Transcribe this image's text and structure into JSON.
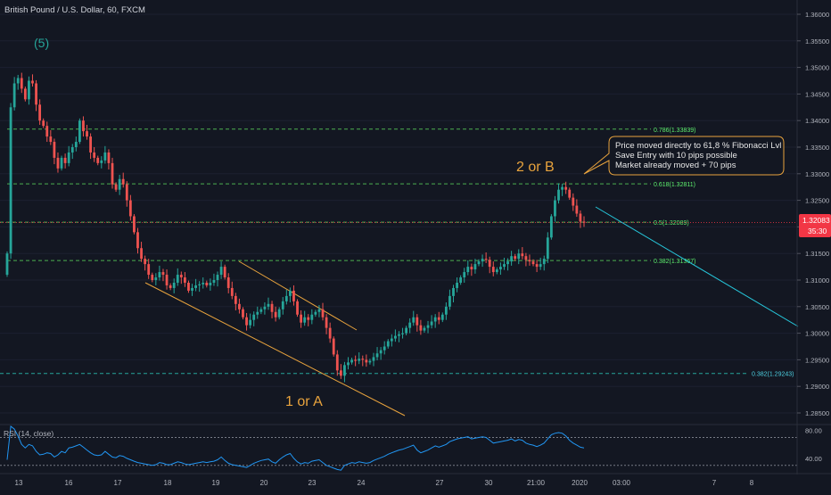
{
  "header": {
    "symbol_title": "British Pound / U.S. Dollar, 60, FXCM"
  },
  "colors": {
    "background": "#131722",
    "up_candle": "#26a69a",
    "down_candle": "#ef5350",
    "fib_line": "#4caf50",
    "fib_label": "#5ef06e",
    "wave_label": "#e8a33d",
    "channel": "#e8a33d",
    "projection": "#26c6da",
    "wave5_label": "#26a69a",
    "price_tag": "#f23645",
    "rsi_line": "#2196f3",
    "axis_text": "#b2b5be"
  },
  "chart_data": [
    {
      "type": "candlestick",
      "title": "British Pound / U.S. Dollar, 60, FXCM",
      "y_axis": {
        "ticks": [
          "1.36000",
          "1.35500",
          "1.35000",
          "1.34500",
          "1.34000",
          "1.33500",
          "1.33000",
          "1.32500",
          "1.32000",
          "1.31500",
          "1.31000",
          "1.30500",
          "1.30000",
          "1.29500",
          "1.29000",
          "1.28500"
        ],
        "ylim": [
          1.2835,
          1.3615
        ]
      },
      "x_axis": {
        "ticks": [
          "13",
          "16",
          "17",
          "18",
          "19",
          "20",
          "23",
          "24",
          "27",
          "30",
          "21:00",
          "2020",
          "03:00",
          "7",
          "8"
        ]
      },
      "current_price": {
        "value": "1.32083",
        "countdown": "35:30"
      },
      "fib_levels": [
        {
          "label": "0.786(1.33839)",
          "price": 1.33839
        },
        {
          "label": "0.618(1.32811)",
          "price": 1.32811
        },
        {
          "label": "0.5(1.32089)",
          "price": 1.32089
        },
        {
          "label": "0.382(1.31367)",
          "price": 1.31367
        },
        {
          "label": "0.382(1.29243)",
          "price": 1.29243
        }
      ],
      "wave_labels": {
        "wave5": "(5)",
        "wave_1_or_a": "1 or A",
        "wave_2_or_b": "2 or B"
      },
      "annotation": {
        "lines": [
          "Price moved directly to 61,8 % Fibonacci Lvl",
          "Save Entry with 10 pips possible",
          "Market already moved + 70 pips"
        ]
      },
      "series": [
        {
          "name": "",
          "close": [
            1.315,
            1.3425,
            1.347,
            1.348,
            1.346,
            1.344,
            1.3475,
            1.347,
            1.343,
            1.34,
            1.339,
            1.337,
            1.336,
            1.333,
            1.331,
            1.333,
            1.332,
            1.334,
            1.335,
            1.336,
            1.34,
            1.338,
            1.337,
            1.334,
            1.333,
            1.332,
            1.3325,
            1.334,
            1.332,
            1.328,
            1.327,
            1.329,
            1.328,
            1.325,
            1.322,
            1.319,
            1.316,
            1.314,
            1.313,
            1.311,
            1.31,
            1.3105,
            1.3115,
            1.311,
            1.309,
            1.3085,
            1.3095,
            1.311,
            1.3105,
            1.3095,
            1.308,
            1.3085,
            1.309,
            1.3092,
            1.3095,
            1.309,
            1.3095,
            1.31,
            1.311,
            1.3125,
            1.3105,
            1.3085,
            1.307,
            1.3055,
            1.3045,
            1.303,
            1.3015,
            1.3025,
            1.3035,
            1.304,
            1.3045,
            1.305,
            1.3055,
            1.304,
            1.303,
            1.3045,
            1.306,
            1.307,
            1.308,
            1.306,
            1.3035,
            1.302,
            1.303,
            1.3025,
            1.3035,
            1.304,
            1.3045,
            1.303,
            1.301,
            1.299,
            1.296,
            1.293,
            1.292,
            1.294,
            1.2945,
            1.295,
            1.2948,
            1.2952,
            1.295,
            1.2945,
            1.2948,
            1.2955,
            1.2962,
            1.2968,
            1.2975,
            1.2985,
            1.299,
            1.2995,
            1.2998,
            1.3,
            1.301,
            1.302,
            1.303,
            1.3015,
            1.3005,
            1.301,
            1.3015,
            1.3022,
            1.303,
            1.3025,
            1.3035,
            1.305,
            1.307,
            1.3085,
            1.3095,
            1.3105,
            1.3115,
            1.3125,
            1.312,
            1.313,
            1.3135,
            1.314,
            1.3138,
            1.3125,
            1.3115,
            1.312,
            1.3125,
            1.313,
            1.3135,
            1.3145,
            1.314,
            1.315,
            1.3145,
            1.3138,
            1.3135,
            1.313,
            1.3125,
            1.313,
            1.314,
            1.318,
            1.322,
            1.325,
            1.327,
            1.3275,
            1.327,
            1.3255,
            1.324,
            1.3225,
            1.321,
            1.3208
          ]
        }
      ]
    },
    {
      "type": "line",
      "title": "RSI (14, close)",
      "y_axis": {
        "ticks": [
          "80.00",
          "40.00"
        ],
        "ylim": [
          22,
          86
        ]
      },
      "levels": [
        70,
        30
      ],
      "series": [
        {
          "name": "",
          "values": [
            38,
            86,
            82,
            72,
            60,
            55,
            60,
            58,
            50,
            45,
            46,
            48,
            47,
            42,
            45,
            50,
            48,
            55,
            56,
            58,
            60,
            56,
            52,
            48,
            45,
            44,
            45,
            50,
            46,
            42,
            41,
            44,
            43,
            40,
            38,
            36,
            34,
            33,
            32,
            31,
            30,
            31,
            34,
            33,
            31,
            31,
            33,
            35,
            34,
            32,
            31,
            32,
            33,
            34,
            35,
            34,
            35,
            36,
            38,
            42,
            37,
            33,
            31,
            30,
            29,
            28,
            27,
            30,
            33,
            35,
            37,
            38,
            39,
            35,
            33,
            38,
            42,
            45,
            47,
            40,
            35,
            32,
            34,
            33,
            36,
            37,
            38,
            34,
            30,
            28,
            26,
            24,
            23,
            30,
            32,
            34,
            33,
            35,
            34,
            33,
            34,
            37,
            39,
            41,
            43,
            46,
            48,
            50,
            52,
            53,
            55,
            57,
            59,
            52,
            48,
            50,
            52,
            55,
            58,
            56,
            58,
            60,
            64,
            66,
            68,
            69,
            70,
            71,
            68,
            69,
            70,
            71,
            70,
            66,
            62,
            63,
            64,
            65,
            66,
            68,
            65,
            67,
            66,
            62,
            60,
            59,
            57,
            59,
            62,
            68,
            74,
            76,
            77,
            76,
            72,
            66,
            62,
            59,
            56,
            55
          ]
        }
      ]
    }
  ]
}
